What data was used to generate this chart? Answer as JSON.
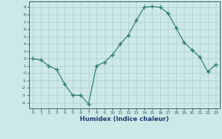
{
  "x": [
    0,
    1,
    2,
    3,
    4,
    5,
    6,
    7,
    8,
    9,
    10,
    11,
    12,
    13,
    14,
    15,
    16,
    17,
    18,
    19,
    20,
    21,
    22,
    23
  ],
  "y": [
    2.0,
    1.8,
    1.0,
    0.5,
    -1.5,
    -3.0,
    -3.0,
    -4.2,
    1.0,
    1.5,
    2.5,
    4.0,
    5.2,
    7.2,
    9.0,
    9.1,
    9.0,
    8.2,
    6.2,
    4.2,
    3.2,
    2.2,
    0.2,
    1.2
  ],
  "xlabel": "Humidex (Indice chaleur)",
  "line_color": "#2d7a6b",
  "marker_color": "#2d7a6b",
  "bg_color": "#cde8e8",
  "grid_color": "#b0d0d0",
  "xlim": [
    -0.5,
    23.5
  ],
  "ylim": [
    -4.8,
    9.8
  ],
  "yticks": [
    -4,
    -3,
    -2,
    -1,
    0,
    1,
    2,
    3,
    4,
    5,
    6,
    7,
    8,
    9
  ],
  "xticks": [
    0,
    1,
    2,
    3,
    4,
    5,
    6,
    7,
    8,
    9,
    10,
    11,
    12,
    13,
    14,
    15,
    16,
    17,
    18,
    19,
    20,
    21,
    22,
    23
  ],
  "tick_color": "#2d5a5a",
  "xlabel_color": "#1a3a6a"
}
